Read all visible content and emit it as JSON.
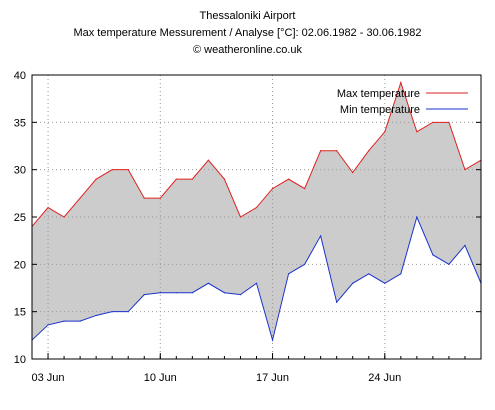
{
  "header": {
    "title": "Thessaloniki Airport",
    "subtitle": "Max temperature Messurement / Analyse [°C]: 02.06.1982 - 30.06.1982",
    "credit": "© weatheronline.co.uk"
  },
  "chart_data": {
    "type": "area",
    "x": [
      2,
      3,
      4,
      5,
      6,
      7,
      8,
      9,
      10,
      11,
      12,
      13,
      14,
      15,
      16,
      17,
      18,
      19,
      20,
      21,
      22,
      23,
      24,
      25,
      26,
      27,
      28,
      29,
      30
    ],
    "x_ticks": [
      3,
      10,
      17,
      24
    ],
    "x_tick_labels": [
      "03 Jun",
      "10 Jun",
      "17 Jun",
      "24 Jun"
    ],
    "xlim": [
      2,
      30
    ],
    "ylim": [
      10,
      40
    ],
    "y_ticks": [
      10,
      15,
      20,
      25,
      30,
      35,
      40
    ],
    "grid": true,
    "legend_position": "top-right",
    "series": [
      {
        "name": "Max temperature",
        "color": "#dd2222",
        "values": [
          24,
          26,
          25,
          27,
          29,
          30,
          30,
          27,
          27,
          29,
          29,
          31,
          29,
          25,
          26,
          28,
          29,
          28,
          32,
          32,
          29.7,
          32,
          34,
          39.2,
          34,
          35,
          35,
          30,
          31
        ]
      },
      {
        "name": "Min temperature",
        "color": "#1a33cc",
        "values": [
          12,
          13.6,
          14,
          14,
          14.6,
          15,
          15,
          16.8,
          17,
          17,
          17,
          18,
          17,
          16.8,
          18,
          12,
          19,
          20,
          23,
          16,
          18,
          19,
          18,
          19,
          25,
          21,
          20,
          22,
          18
        ]
      }
    ],
    "fill_color": "#cccccc"
  }
}
